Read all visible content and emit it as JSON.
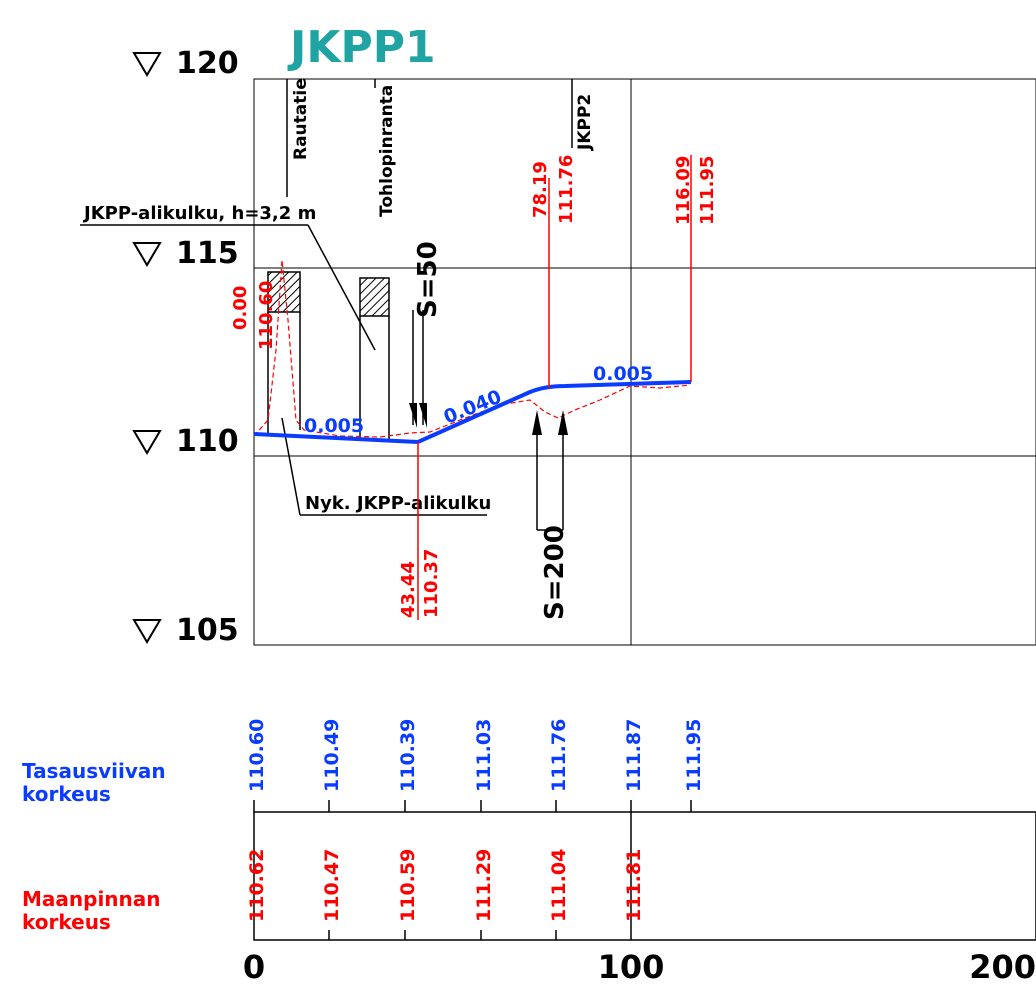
{
  "title": "JKPP1",
  "elevations": [
    "120",
    "115",
    "110",
    "105"
  ],
  "station_labels": {
    "rautatie": "Rautatie",
    "tohlopinranta": "Tohlopinranta",
    "jkpp2": "JKPP2"
  },
  "callouts": {
    "alikulku_new": "JKPP-alikulku, h=3,2 m",
    "alikulku_existing": "Nyk. JKPP-alikulku"
  },
  "curves": {
    "s50": "S=50",
    "s200": "S=200"
  },
  "grades": {
    "g1": "0.005",
    "g2": "0.040",
    "g3": "0.005"
  },
  "points": [
    {
      "sta": "0.00",
      "elev": "110.60"
    },
    {
      "sta": "43.44",
      "elev": "110.37"
    },
    {
      "sta": "78.19",
      "elev": "111.76"
    },
    {
      "sta": "116.09",
      "elev": "111.95"
    }
  ],
  "table": {
    "row1_label_1": "Tasausviivan",
    "row1_label_2": "korkeus",
    "row2_label_1": "Maanpinnan",
    "row2_label_2": "korkeus",
    "design": [
      "110.60",
      "110.49",
      "110.39",
      "111.03",
      "111.76",
      "111.87",
      "111.95"
    ],
    "ground": [
      "110.62",
      "110.47",
      "110.59",
      "111.29",
      "111.04",
      "111.81"
    ]
  },
  "x_axis": [
    "0",
    "100",
    "200"
  ],
  "colors": {
    "design": "#0a3cff",
    "ground": "#ff0000",
    "title": "#1fa3a3"
  }
}
